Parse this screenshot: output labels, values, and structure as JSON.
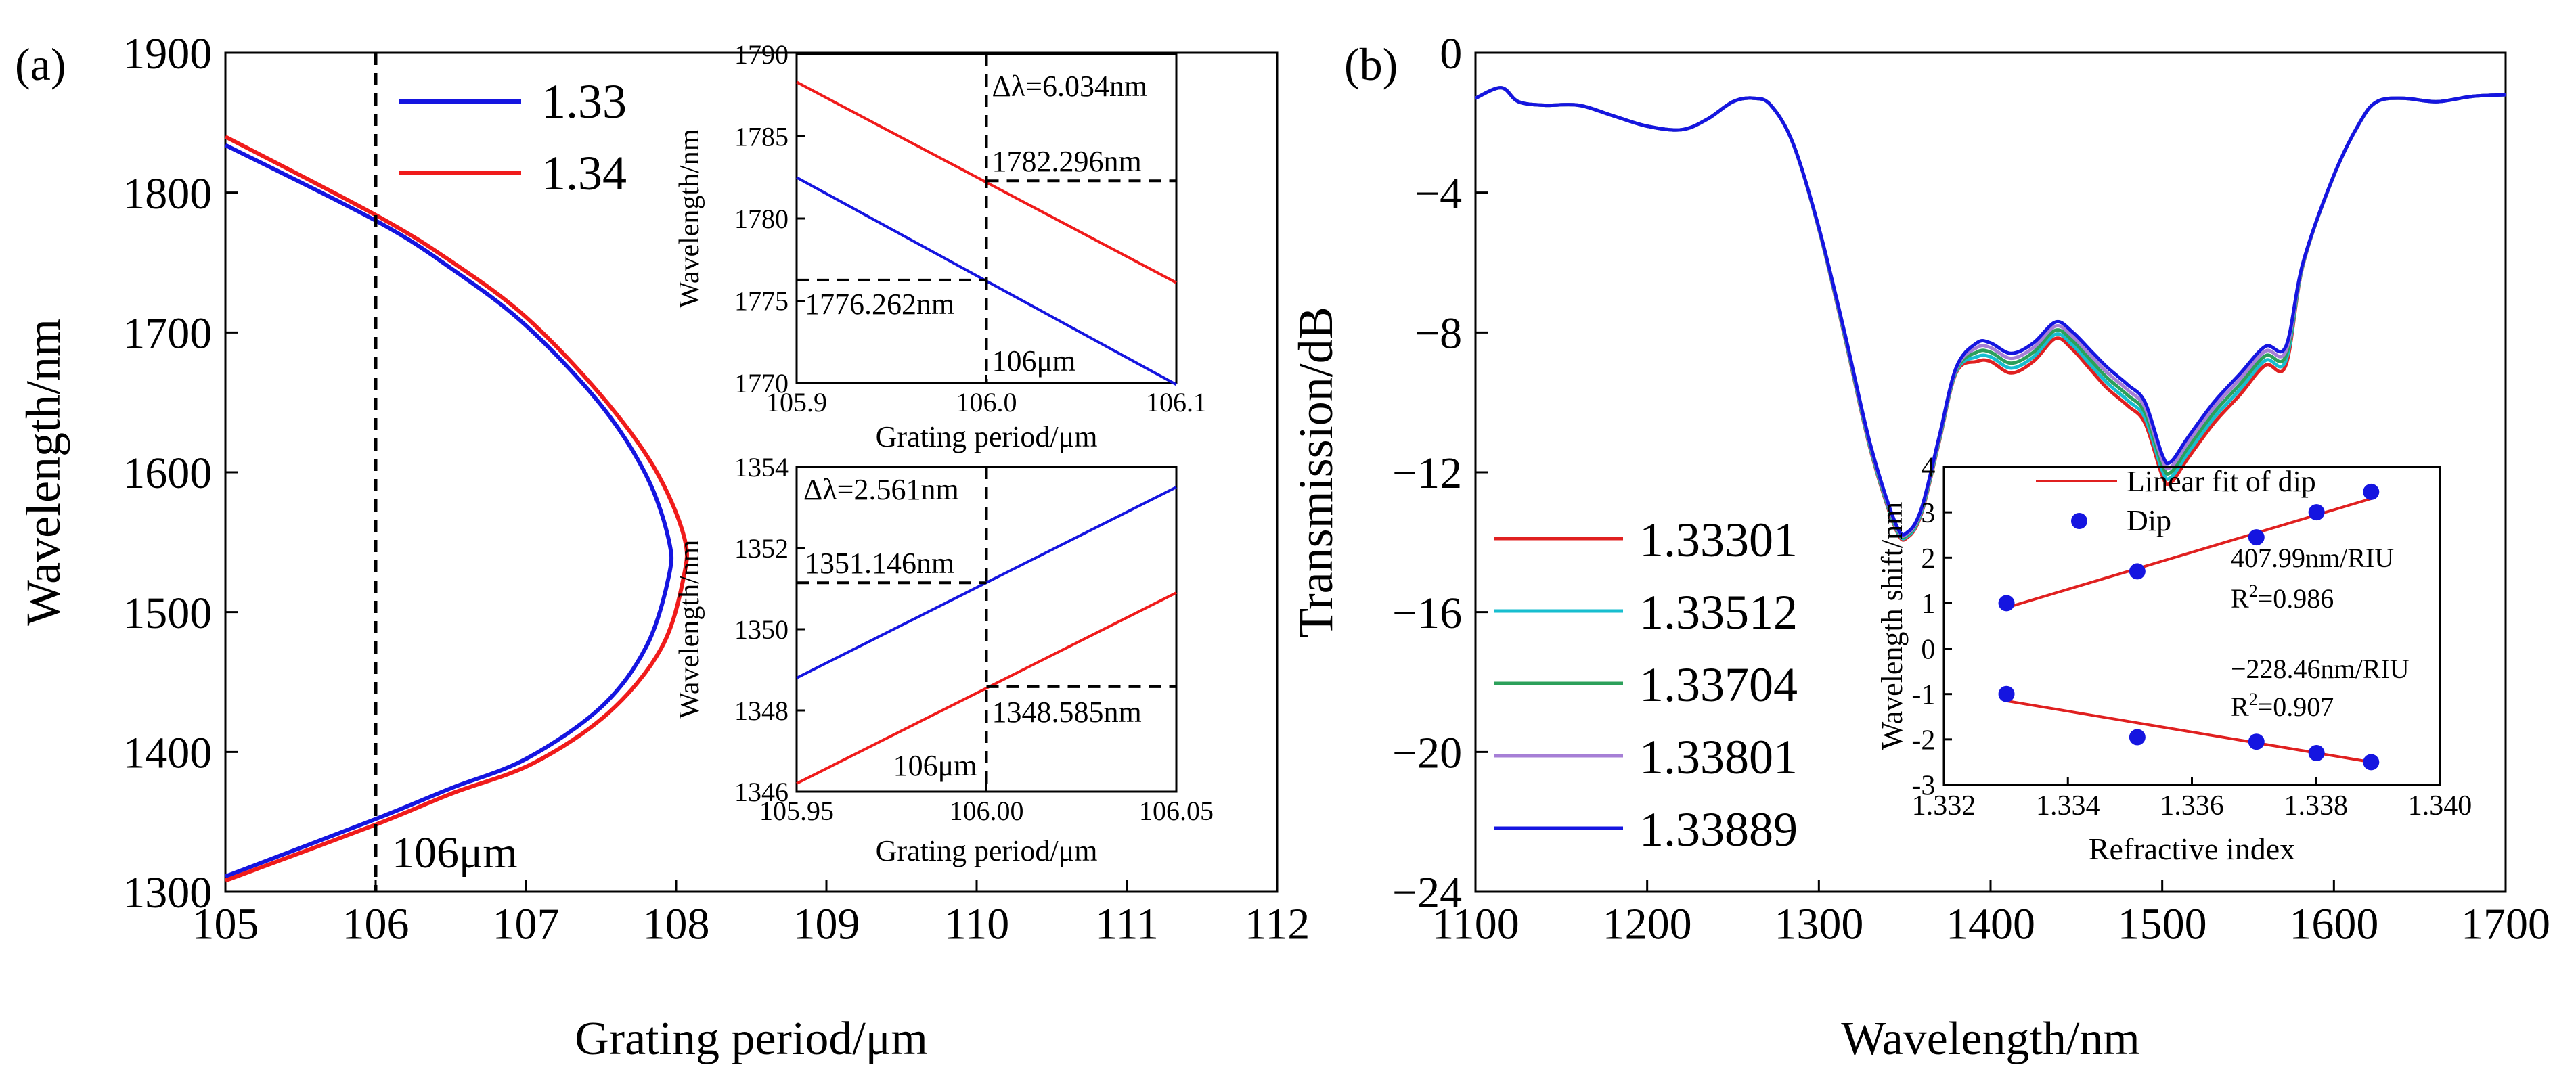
{
  "chart_data": [
    {
      "id": "a_main",
      "type": "line",
      "panel_label": "(a)",
      "xlabel": "Grating period/μm",
      "ylabel": "Wavelength/nm",
      "xlim": [
        105,
        112
      ],
      "ylim": [
        1300,
        1900
      ],
      "xticks": [
        105,
        106,
        107,
        108,
        109,
        110,
        111,
        112
      ],
      "yticks": [
        1300,
        1400,
        1500,
        1600,
        1700,
        1800,
        1900
      ],
      "legend": "top-left",
      "series": [
        {
          "name": "1.33",
          "color": "#1515e0",
          "points": [
            [
              105,
              1834
            ],
            [
              106,
              1780
            ],
            [
              106.5,
              1746
            ],
            [
              107,
              1705
            ],
            [
              107.5,
              1648
            ],
            [
              107.8,
              1598
            ],
            [
              107.95,
              1552
            ],
            [
              107.95,
              1525
            ],
            [
              107.8,
              1475
            ],
            [
              107.5,
              1432
            ],
            [
              107,
              1395
            ],
            [
              106.5,
              1374
            ],
            [
              106,
              1352
            ],
            [
              105,
              1311
            ]
          ]
        },
        {
          "name": "1.34",
          "color": "#f01b1b",
          "points": [
            [
              105,
              1840
            ],
            [
              106,
              1784
            ],
            [
              106.5,
              1751
            ],
            [
              107,
              1711
            ],
            [
              107.5,
              1655
            ],
            [
              107.85,
              1604
            ],
            [
              108.05,
              1555
            ],
            [
              108.05,
              1525
            ],
            [
              107.9,
              1474
            ],
            [
              107.55,
              1428
            ],
            [
              107.05,
              1392
            ],
            [
              106.5,
              1370
            ],
            [
              106,
              1348
            ],
            [
              105,
              1308
            ]
          ]
        }
      ],
      "annotations": [
        {
          "kind": "vline",
          "x": 106,
          "text": "106μm"
        }
      ]
    },
    {
      "id": "a_inset_top",
      "type": "line",
      "xlabel": "Grating period/μm",
      "ylabel": "Wavelength/nm",
      "xlim": [
        105.9,
        106.1
      ],
      "ylim": [
        1770,
        1790
      ],
      "xticks": [
        "105.9",
        "106.0",
        "106.1"
      ],
      "yticks": [
        "1770",
        "1775",
        "1780",
        "1785",
        "1790"
      ],
      "series": [
        {
          "name": "1.34",
          "color": "#f01b1b",
          "points": [
            [
              105.9,
              1788.3
            ],
            [
              106.1,
              1776.1
            ]
          ]
        },
        {
          "name": "1.33",
          "color": "#1515e0",
          "points": [
            [
              105.9,
              1782.5
            ],
            [
              106.1,
              1769.9
            ]
          ]
        }
      ],
      "annotations": [
        {
          "kind": "vline",
          "x": 106.0
        },
        {
          "kind": "hline_right",
          "y": 1782.296,
          "text": "1782.296nm"
        },
        {
          "kind": "hline_left",
          "y": 1776.262,
          "text": "1776.262nm"
        },
        {
          "kind": "label",
          "text": "Δλ=6.034nm"
        },
        {
          "kind": "label",
          "text": "106μm"
        }
      ]
    },
    {
      "id": "a_inset_bottom",
      "type": "line",
      "xlabel": "Grating period/μm",
      "ylabel": "Wavelength/nm",
      "xlim": [
        105.95,
        106.05
      ],
      "ylim": [
        1346,
        1354
      ],
      "xticks": [
        "105.95",
        "106.00",
        "106.05"
      ],
      "yticks": [
        "1346",
        "1348",
        "1350",
        "1352",
        "1354"
      ],
      "series": [
        {
          "name": "1.33",
          "color": "#1515e0",
          "points": [
            [
              105.95,
              1348.8
            ],
            [
              106.05,
              1353.5
            ]
          ]
        },
        {
          "name": "1.34",
          "color": "#f01b1b",
          "points": [
            [
              105.95,
              1346.2
            ],
            [
              106.05,
              1350.9
            ]
          ]
        }
      ],
      "annotations": [
        {
          "kind": "vline",
          "x": 106.0
        },
        {
          "kind": "hline_left",
          "y": 1351.146,
          "text": "1351.146nm"
        },
        {
          "kind": "hline_right",
          "y": 1348.585,
          "text": "1348.585nm"
        },
        {
          "kind": "label",
          "text": "Δλ=2.561nm"
        },
        {
          "kind": "label",
          "text": "106μm"
        }
      ]
    },
    {
      "id": "b_main",
      "type": "line",
      "panel_label": "(b)",
      "xlabel": "Wavelength/nm",
      "ylabel": "Transmission/dB",
      "xlim": [
        1100,
        1700
      ],
      "ylim": [
        -24,
        0
      ],
      "xticks": [
        1100,
        1200,
        1300,
        1400,
        1500,
        1600,
        1700
      ],
      "yticks": [
        0,
        -4,
        -8,
        -12,
        -16,
        -20,
        -24
      ],
      "ytick_labels": [
        "0",
        "−4",
        "−8",
        "−12",
        "−16",
        "−20",
        "−24"
      ],
      "legend": "bottom-left",
      "base_curve": [
        [
          1100,
          -1.3
        ],
        [
          1115,
          -1.0
        ],
        [
          1125,
          -1.4
        ],
        [
          1140,
          -1.5
        ],
        [
          1160,
          -1.5
        ],
        [
          1180,
          -1.8
        ],
        [
          1200,
          -2.1
        ],
        [
          1220,
          -2.2
        ],
        [
          1235,
          -1.9
        ],
        [
          1250,
          -1.4
        ],
        [
          1262,
          -1.3
        ],
        [
          1272,
          -1.5
        ],
        [
          1285,
          -2.6
        ],
        [
          1300,
          -5.0
        ],
        [
          1315,
          -8.0
        ],
        [
          1330,
          -11.2
        ],
        [
          1345,
          -13.5
        ],
        [
          1352,
          -13.7
        ],
        [
          1360,
          -13.0
        ],
        [
          1370,
          -11.0
        ],
        [
          1380,
          -9.0
        ],
        [
          1392,
          -8.3
        ],
        [
          1400,
          -8.3
        ],
        [
          1412,
          -8.6
        ],
        [
          1425,
          -8.3
        ],
        [
          1438,
          -7.7
        ],
        [
          1448,
          -8.0
        ],
        [
          1458,
          -8.5
        ],
        [
          1468,
          -9.0
        ],
        [
          1480,
          -9.5
        ],
        [
          1490,
          -10.0
        ],
        [
          1500,
          -11.5
        ],
        [
          1505,
          -11.7
        ],
        [
          1515,
          -11.0
        ],
        [
          1530,
          -10.0
        ],
        [
          1545,
          -9.2
        ],
        [
          1560,
          -8.4
        ],
        [
          1572,
          -8.4
        ],
        [
          1582,
          -6.0
        ],
        [
          1600,
          -3.5
        ],
        [
          1615,
          -2.0
        ],
        [
          1625,
          -1.4
        ],
        [
          1640,
          -1.3
        ],
        [
          1660,
          -1.4
        ],
        [
          1680,
          -1.25
        ],
        [
          1700,
          -1.2
        ]
      ],
      "series": [
        {
          "name": "1.33301",
          "color": "#e02020",
          "dip_offset": 0.6
        },
        {
          "name": "1.33512",
          "color": "#17becf",
          "dip_offset": 0.45
        },
        {
          "name": "1.33704",
          "color": "#2ca05a",
          "dip_offset": 0.3
        },
        {
          "name": "1.33801",
          "color": "#a67fd6",
          "dip_offset": 0.15
        },
        {
          "name": "1.33889",
          "color": "#1515e0",
          "dip_offset": 0.0
        }
      ]
    },
    {
      "id": "b_inset",
      "type": "scatter",
      "xlabel": "Refractive index",
      "ylabel": "Wavelength shift/nm",
      "xlim": [
        1.332,
        1.34
      ],
      "ylim": [
        -3,
        4
      ],
      "xticks": [
        "1.332",
        "1.334",
        "1.336",
        "1.338",
        "1.340"
      ],
      "yticks": [
        "4",
        "3",
        "2",
        "1",
        "0",
        "-1",
        "-2",
        "-3"
      ],
      "legend_entries": [
        "Linear fit of dip",
        "Dip"
      ],
      "series": [
        {
          "name": "upper",
          "points": [
            [
              1.33301,
              1.0
            ],
            [
              1.33512,
              1.7
            ],
            [
              1.33704,
              2.45
            ],
            [
              1.33801,
              3.0
            ],
            [
              1.33889,
              3.45
            ]
          ],
          "fit": [
            [
              1.33301,
              0.9
            ],
            [
              1.33889,
              3.3
            ]
          ],
          "fit_label": "407.99nm/RIU",
          "r2_value": "=0.986"
        },
        {
          "name": "lower",
          "points": [
            [
              1.33301,
              -1.0
            ],
            [
              1.33512,
              -1.95
            ],
            [
              1.33704,
              -2.05
            ],
            [
              1.33801,
              -2.3
            ],
            [
              1.33889,
              -2.5
            ]
          ],
          "fit": [
            [
              1.33301,
              -1.15
            ],
            [
              1.33889,
              -2.5
            ]
          ],
          "fit_label": "−228.46nm/RIU",
          "r2_value": "=0.907"
        }
      ],
      "fit_color": "#e02020",
      "point_color": "#1515e0"
    }
  ]
}
